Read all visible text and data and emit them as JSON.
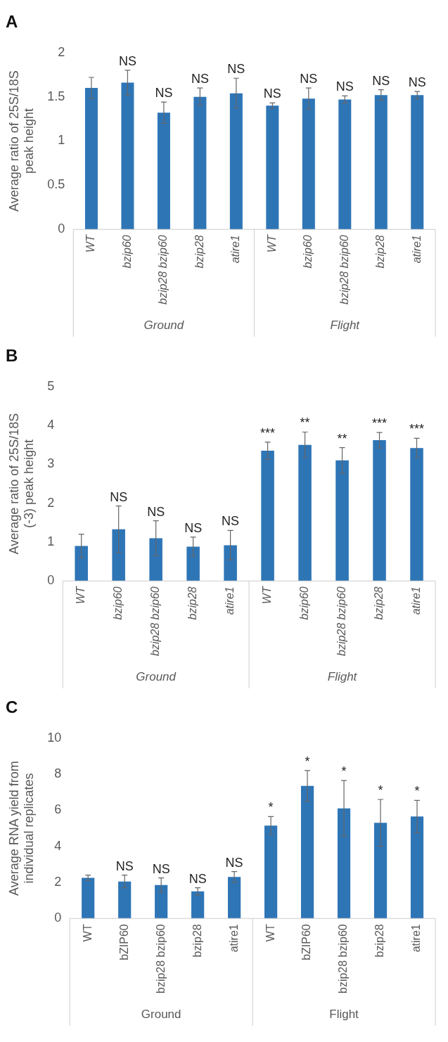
{
  "chart_data": [
    {
      "type": "bar",
      "title": "A",
      "ylabel": "Average ratio of 25S/18S peak height",
      "categories": [
        "WT",
        "bzip60",
        "bzip28 bzip60",
        "bzip28",
        "atire1",
        "WT",
        "bzip60",
        "bzip28 bzip60",
        "bzip28",
        "atire1"
      ],
      "values": [
        1.6,
        1.66,
        1.32,
        1.5,
        1.54,
        1.4,
        1.48,
        1.47,
        1.52,
        1.52
      ],
      "errors": [
        0.12,
        0.14,
        0.12,
        0.1,
        0.17,
        0.03,
        0.12,
        0.04,
        0.06,
        0.04
      ],
      "value_labels": [
        null,
        "NS",
        "NS",
        "NS",
        "NS",
        "NS",
        "NS",
        "NS",
        "NS",
        "NS"
      ],
      "color": "#2e75b6",
      "ylim": [
        0,
        2
      ],
      "yticks": [
        0,
        0.5,
        1,
        1.5,
        2
      ],
      "grid": false,
      "annotations": [
        "Ground",
        "Flight"
      ]
    },
    {
      "type": "bar",
      "title": "B",
      "ylabel": "Average ratio of 25S/18S (-3) peak height",
      "categories": [
        "WT",
        "bzip60",
        "bzip28 bzip60",
        "bzip28",
        "atire1",
        "WT",
        "bzip60",
        "bzip28 bzip60",
        "bzip28",
        "atire1"
      ],
      "values": [
        0.9,
        1.33,
        1.1,
        0.88,
        0.92,
        3.35,
        3.5,
        3.1,
        3.62,
        3.42
      ],
      "errors": [
        0.3,
        0.6,
        0.45,
        0.25,
        0.38,
        0.22,
        0.33,
        0.33,
        0.2,
        0.25
      ],
      "value_labels": [
        null,
        "NS",
        "NS",
        "NS",
        "NS",
        "***",
        "**",
        "**",
        "***",
        "***"
      ],
      "color": "#2e75b6",
      "ylim": [
        0,
        5
      ],
      "yticks": [
        0,
        1,
        2,
        3,
        4,
        5
      ],
      "grid": false,
      "annotations": [
        "Ground",
        "Flight"
      ]
    },
    {
      "type": "bar",
      "title": "C",
      "ylabel": "Average RNA yield from individual replicates",
      "categories": [
        "WT",
        "bZIP60",
        "bzip28 bzip60",
        "bzip28",
        "atire1",
        "WT",
        "bZIP60",
        "bzip28 bzip60",
        "bzip28",
        "atire1"
      ],
      "values": [
        2.25,
        2.05,
        1.85,
        1.5,
        2.3,
        5.15,
        7.35,
        6.1,
        5.3,
        5.65
      ],
      "errors": [
        0.15,
        0.35,
        0.4,
        0.2,
        0.3,
        0.5,
        0.85,
        1.55,
        1.3,
        0.9
      ],
      "value_labels": [
        null,
        "NS",
        "NS",
        "NS",
        "NS",
        "*",
        "*",
        "*",
        "*",
        "*"
      ],
      "color": "#2e75b6",
      "ylim": [
        0,
        10
      ],
      "yticks": [
        0,
        2,
        4,
        6,
        8,
        10
      ],
      "grid": false,
      "annotations": [
        "Ground",
        "Flight"
      ]
    }
  ]
}
